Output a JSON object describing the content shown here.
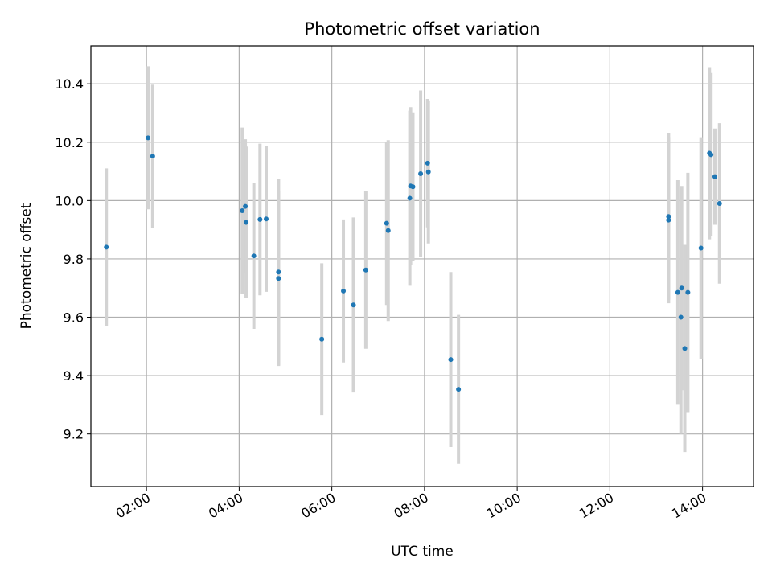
{
  "chart_data": {
    "type": "scatter",
    "title": "Photometric offset variation",
    "xlabel": "UTC time",
    "ylabel": "Photometric offset",
    "grid": true,
    "x_axis": "time",
    "xlim": [
      "00:48",
      "15:06"
    ],
    "ylim": [
      9.02,
      10.53
    ],
    "x_ticks": [
      "02:00",
      "04:00",
      "06:00",
      "08:00",
      "10:00",
      "12:00",
      "14:00"
    ],
    "y_ticks": [
      "9.2",
      "9.4",
      "9.6",
      "9.8",
      "10.0",
      "10.2",
      "10.4"
    ],
    "colors": {
      "point": "#1f77b4",
      "errorbar": "#d3d3d3",
      "grid": "#b0b0b0"
    },
    "points": [
      {
        "x": "01:08",
        "y": 9.84,
        "err": 0.27
      },
      {
        "x": "02:02",
        "y": 10.215,
        "err": 0.245
      },
      {
        "x": "02:08",
        "y": 10.152,
        "err": 0.245
      },
      {
        "x": "04:04",
        "y": 9.965,
        "err": 0.285
      },
      {
        "x": "04:08",
        "y": 9.98,
        "err": 0.23
      },
      {
        "x": "04:09",
        "y": 9.925,
        "err": 0.26
      },
      {
        "x": "04:19",
        "y": 9.81,
        "err": 0.25
      },
      {
        "x": "04:27",
        "y": 9.935,
        "err": 0.26
      },
      {
        "x": "04:35",
        "y": 9.937,
        "err": 0.25
      },
      {
        "x": "04:51",
        "y": 9.755,
        "err": 0.32
      },
      {
        "x": "04:51",
        "y": 9.733,
        "err": 0.3
      },
      {
        "x": "05:47",
        "y": 9.525,
        "err": 0.26
      },
      {
        "x": "06:15",
        "y": 9.69,
        "err": 0.245
      },
      {
        "x": "06:28",
        "y": 9.642,
        "err": 0.3
      },
      {
        "x": "06:44",
        "y": 9.762,
        "err": 0.27
      },
      {
        "x": "07:11",
        "y": 9.922,
        "err": 0.28
      },
      {
        "x": "07:13",
        "y": 9.897,
        "err": 0.31
      },
      {
        "x": "07:41",
        "y": 10.008,
        "err": 0.3
      },
      {
        "x": "07:42",
        "y": 10.05,
        "err": 0.27
      },
      {
        "x": "07:45",
        "y": 10.047,
        "err": 0.255
      },
      {
        "x": "07:55",
        "y": 10.092,
        "err": 0.285
      },
      {
        "x": "08:04",
        "y": 10.128,
        "err": 0.22
      },
      {
        "x": "08:05",
        "y": 10.098,
        "err": 0.245
      },
      {
        "x": "08:34",
        "y": 9.455,
        "err": 0.3
      },
      {
        "x": "08:44",
        "y": 9.353,
        "err": 0.255
      },
      {
        "x": "13:16",
        "y": 9.945,
        "err": 0.285
      },
      {
        "x": "13:16",
        "y": 9.933,
        "err": 0.285
      },
      {
        "x": "13:28",
        "y": 9.685,
        "err": 0.385
      },
      {
        "x": "13:33",
        "y": 9.7,
        "err": 0.35
      },
      {
        "x": "13:32",
        "y": 9.6,
        "err": 0.4
      },
      {
        "x": "13:37",
        "y": 9.493,
        "err": 0.355
      },
      {
        "x": "13:41",
        "y": 9.685,
        "err": 0.41
      },
      {
        "x": "13:58",
        "y": 9.837,
        "err": 0.38
      },
      {
        "x": "14:09",
        "y": 10.162,
        "err": 0.295
      },
      {
        "x": "14:11",
        "y": 10.157,
        "err": 0.28
      },
      {
        "x": "14:16",
        "y": 10.082,
        "err": 0.165
      },
      {
        "x": "14:22",
        "y": 9.99,
        "err": 0.275
      }
    ]
  }
}
